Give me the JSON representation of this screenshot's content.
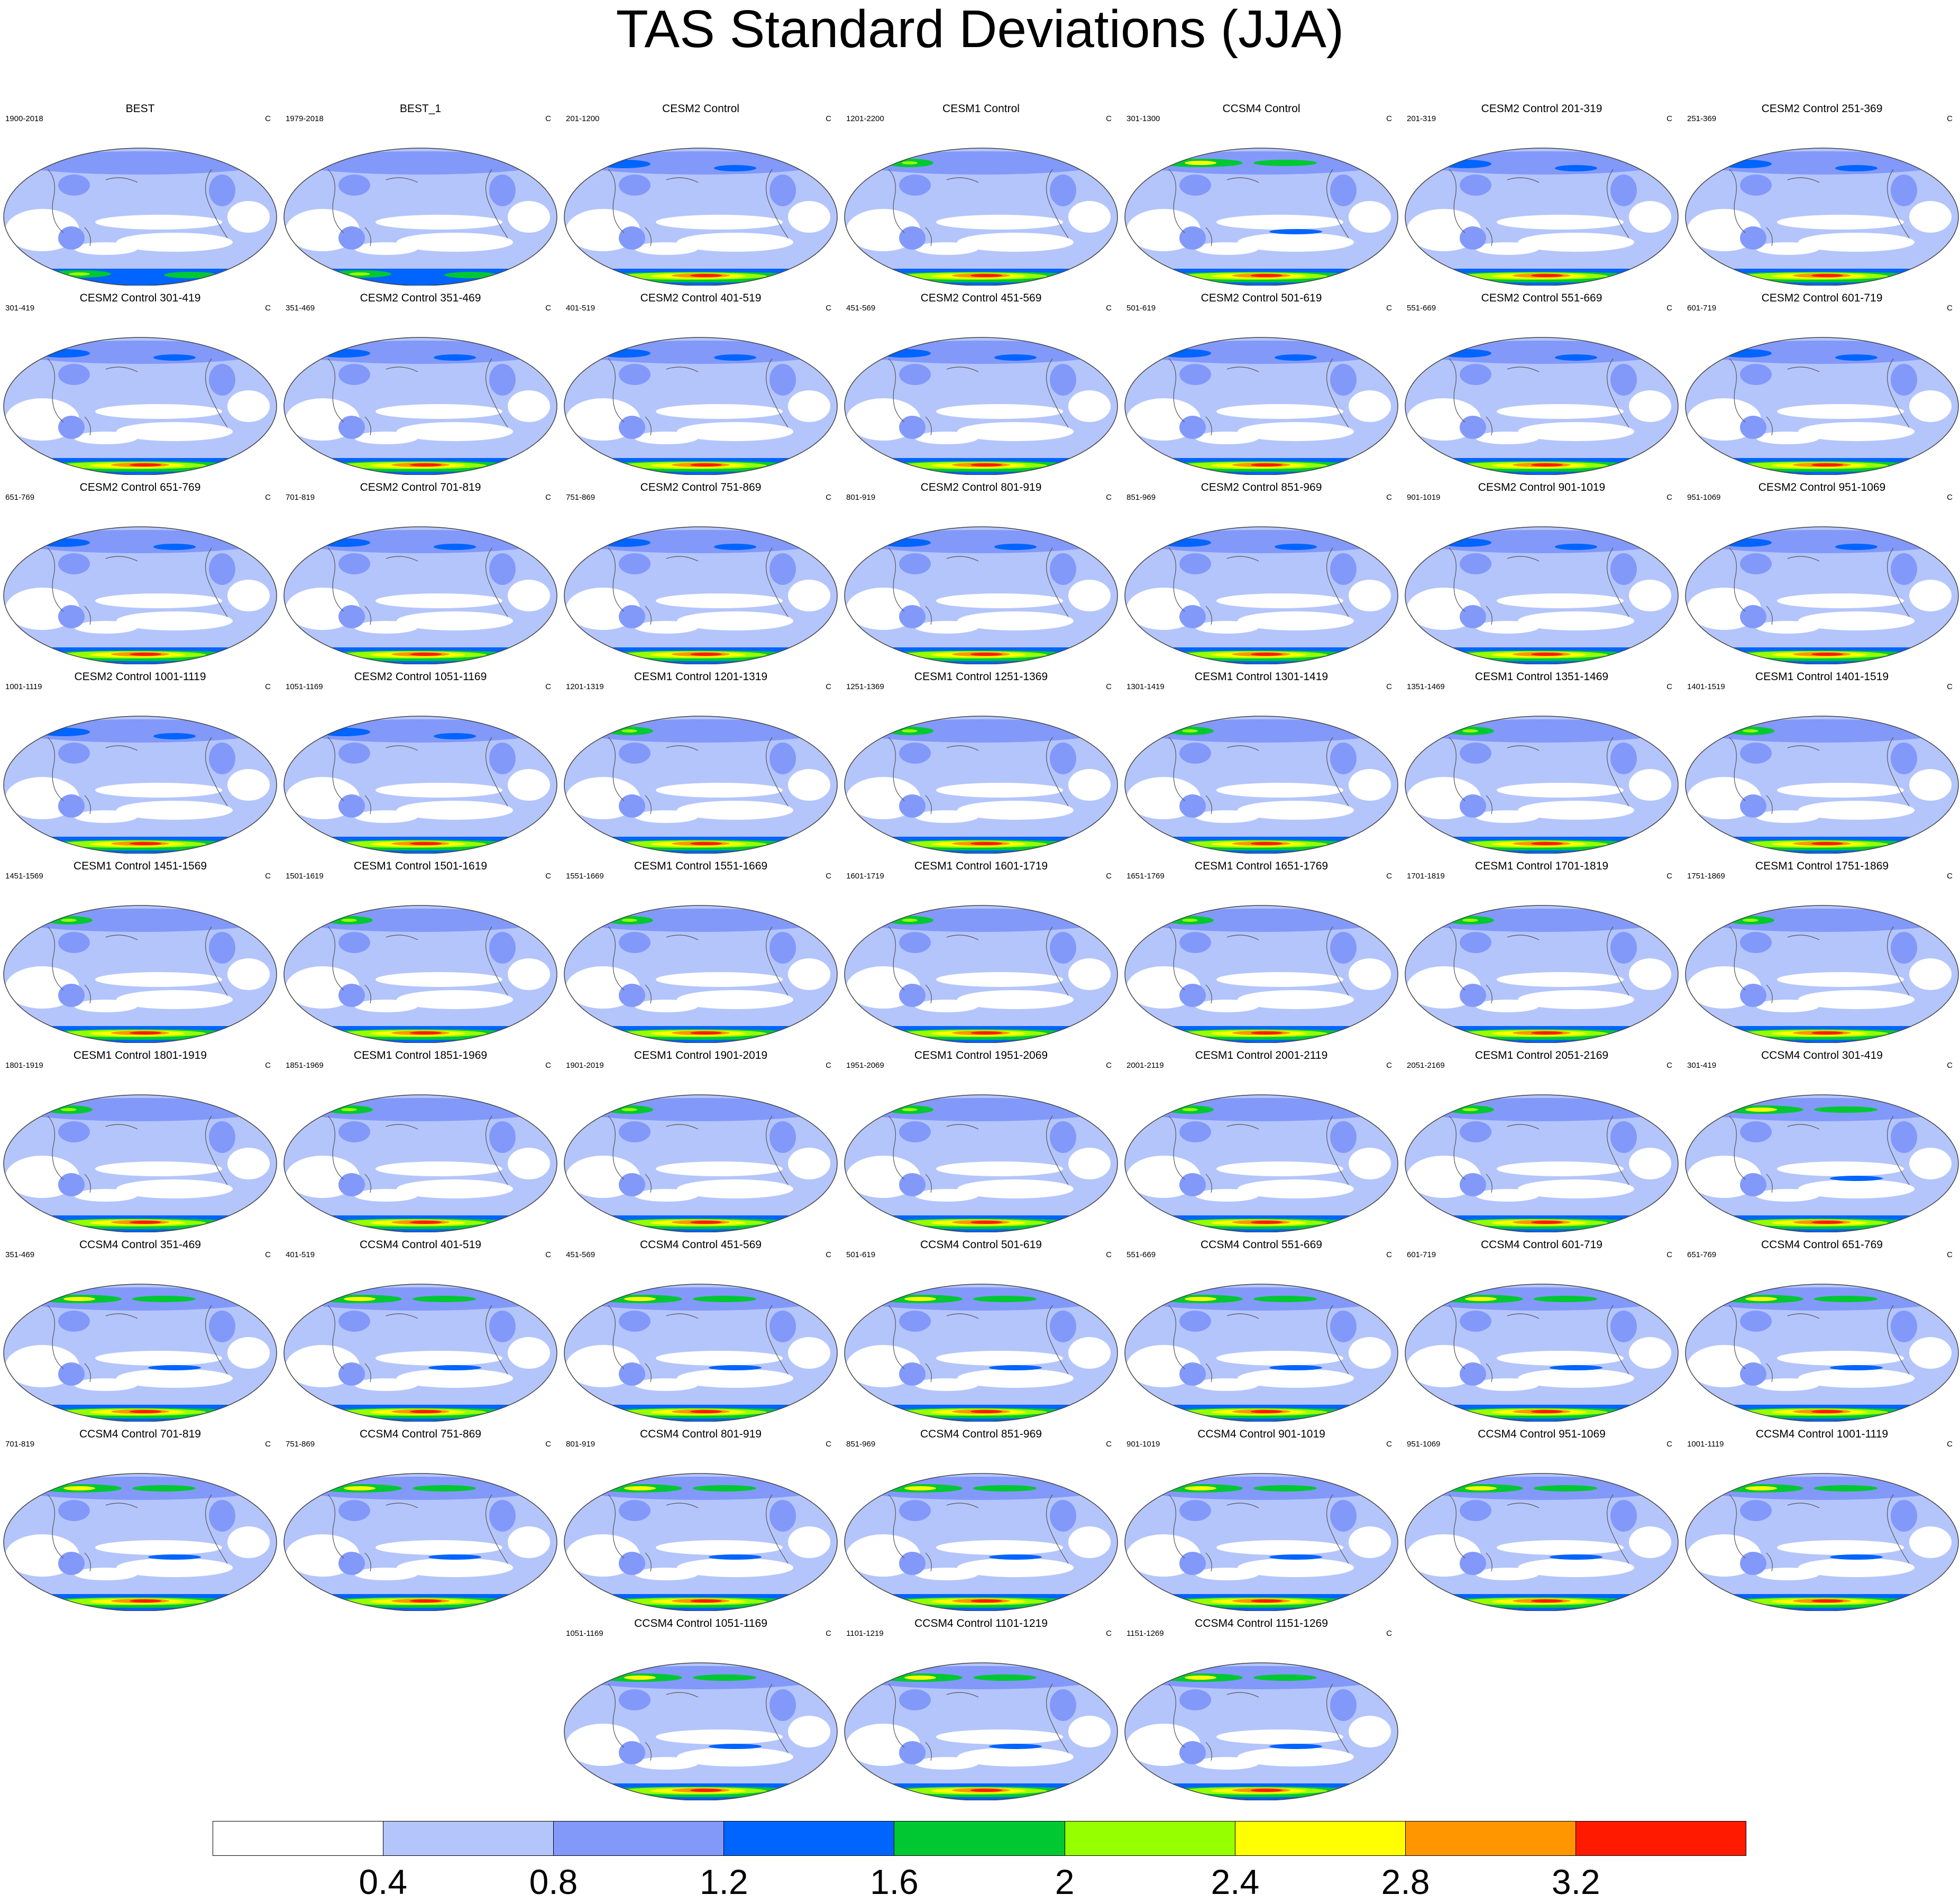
{
  "title": "TAS Standard Deviations (JJA)",
  "panel_units": "C",
  "panels": [
    {
      "title": "BEST",
      "period": "1900-2018",
      "style": "obs"
    },
    {
      "title": "BEST_1",
      "period": "1979-2018",
      "style": "obs"
    },
    {
      "title": "CESM2 Control",
      "period": "201-1200",
      "style": "cesm2"
    },
    {
      "title": "CESM1 Control",
      "period": "1201-2200",
      "style": "cesm1"
    },
    {
      "title": "CCSM4 Control",
      "period": "301-1300",
      "style": "ccsm4"
    },
    {
      "title": "CESM2 Control 201-319",
      "period": "201-319",
      "style": "cesm2"
    },
    {
      "title": "CESM2 Control 251-369",
      "period": "251-369",
      "style": "cesm2"
    },
    {
      "title": "CESM2 Control 301-419",
      "period": "301-419",
      "style": "cesm2"
    },
    {
      "title": "CESM2 Control 351-469",
      "period": "351-469",
      "style": "cesm2"
    },
    {
      "title": "CESM2 Control 401-519",
      "period": "401-519",
      "style": "cesm2"
    },
    {
      "title": "CESM2 Control 451-569",
      "period": "451-569",
      "style": "cesm2"
    },
    {
      "title": "CESM2 Control 501-619",
      "period": "501-619",
      "style": "cesm2"
    },
    {
      "title": "CESM2 Control 551-669",
      "period": "551-669",
      "style": "cesm2"
    },
    {
      "title": "CESM2 Control 601-719",
      "period": "601-719",
      "style": "cesm2"
    },
    {
      "title": "CESM2 Control 651-769",
      "period": "651-769",
      "style": "cesm2"
    },
    {
      "title": "CESM2 Control 701-819",
      "period": "701-819",
      "style": "cesm2"
    },
    {
      "title": "CESM2 Control 751-869",
      "period": "751-869",
      "style": "cesm2"
    },
    {
      "title": "CESM2 Control 801-919",
      "period": "801-919",
      "style": "cesm2"
    },
    {
      "title": "CESM2 Control 851-969",
      "period": "851-969",
      "style": "cesm2"
    },
    {
      "title": "CESM2 Control 901-1019",
      "period": "901-1019",
      "style": "cesm2"
    },
    {
      "title": "CESM2 Control 951-1069",
      "period": "951-1069",
      "style": "cesm2"
    },
    {
      "title": "CESM2 Control 1001-1119",
      "period": "1001-1119",
      "style": "cesm2"
    },
    {
      "title": "CESM2 Control 1051-1169",
      "period": "1051-1169",
      "style": "cesm2"
    },
    {
      "title": "CESM1 Control 1201-1319",
      "period": "1201-1319",
      "style": "cesm1"
    },
    {
      "title": "CESM1 Control 1251-1369",
      "period": "1251-1369",
      "style": "cesm1"
    },
    {
      "title": "CESM1 Control 1301-1419",
      "period": "1301-1419",
      "style": "cesm1"
    },
    {
      "title": "CESM1 Control 1351-1469",
      "period": "1351-1469",
      "style": "cesm1"
    },
    {
      "title": "CESM1 Control 1401-1519",
      "period": "1401-1519",
      "style": "cesm1"
    },
    {
      "title": "CESM1 Control 1451-1569",
      "period": "1451-1569",
      "style": "cesm1"
    },
    {
      "title": "CESM1 Control 1501-1619",
      "period": "1501-1619",
      "style": "cesm1"
    },
    {
      "title": "CESM1 Control 1551-1669",
      "period": "1551-1669",
      "style": "cesm1"
    },
    {
      "title": "CESM1 Control 1601-1719",
      "period": "1601-1719",
      "style": "cesm1"
    },
    {
      "title": "CESM1 Control 1651-1769",
      "period": "1651-1769",
      "style": "cesm1"
    },
    {
      "title": "CESM1 Control 1701-1819",
      "period": "1701-1819",
      "style": "cesm1"
    },
    {
      "title": "CESM1 Control 1751-1869",
      "period": "1751-1869",
      "style": "cesm1"
    },
    {
      "title": "CESM1 Control 1801-1919",
      "period": "1801-1919",
      "style": "cesm1"
    },
    {
      "title": "CESM1 Control 1851-1969",
      "period": "1851-1969",
      "style": "cesm1"
    },
    {
      "title": "CESM1 Control 1901-2019",
      "period": "1901-2019",
      "style": "cesm1"
    },
    {
      "title": "CESM1 Control 1951-2069",
      "period": "1951-2069",
      "style": "cesm1"
    },
    {
      "title": "CESM1 Control 2001-2119",
      "period": "2001-2119",
      "style": "cesm1"
    },
    {
      "title": "CESM1 Control 2051-2169",
      "period": "2051-2169",
      "style": "cesm1"
    },
    {
      "title": "CCSM4 Control 301-419",
      "period": "301-419",
      "style": "ccsm4"
    },
    {
      "title": "CCSM4 Control 351-469",
      "period": "351-469",
      "style": "ccsm4"
    },
    {
      "title": "CCSM4 Control 401-519",
      "period": "401-519",
      "style": "ccsm4"
    },
    {
      "title": "CCSM4 Control 451-569",
      "period": "451-569",
      "style": "ccsm4"
    },
    {
      "title": "CCSM4 Control 501-619",
      "period": "501-619",
      "style": "ccsm4"
    },
    {
      "title": "CCSM4 Control 551-669",
      "period": "551-669",
      "style": "ccsm4"
    },
    {
      "title": "CCSM4 Control 601-719",
      "period": "601-719",
      "style": "ccsm4"
    },
    {
      "title": "CCSM4 Control 651-769",
      "period": "651-769",
      "style": "ccsm4"
    },
    {
      "title": "CCSM4 Control 701-819",
      "period": "701-819",
      "style": "ccsm4"
    },
    {
      "title": "CCSM4 Control 751-869",
      "period": "751-869",
      "style": "ccsm4"
    },
    {
      "title": "CCSM4 Control 801-919",
      "period": "801-919",
      "style": "ccsm4"
    },
    {
      "title": "CCSM4 Control 851-969",
      "period": "851-969",
      "style": "ccsm4"
    },
    {
      "title": "CCSM4 Control 901-1019",
      "period": "901-1019",
      "style": "ccsm4"
    },
    {
      "title": "CCSM4 Control 951-1069",
      "period": "951-1069",
      "style": "ccsm4"
    },
    {
      "title": "CCSM4 Control 1001-1119",
      "period": "1001-1119",
      "style": "ccsm4"
    },
    {
      "title": "CCSM4 Control 1051-1169",
      "period": "1051-1169",
      "style": "ccsm4"
    },
    {
      "title": "CCSM4 Control 1101-1219",
      "period": "1101-1219",
      "style": "ccsm4"
    },
    {
      "title": "CCSM4 Control 1151-1269",
      "period": "1151-1269",
      "style": "ccsm4"
    }
  ],
  "colorbar": {
    "colors": [
      "#ffffff",
      "#b4c5fc",
      "#8299fa",
      "#0064ff",
      "#00c832",
      "#96ff00",
      "#ffff00",
      "#ff9600",
      "#ff1a00"
    ],
    "labels": [
      "0.4",
      "0.8",
      "1.2",
      "1.6",
      "2",
      "2.4",
      "2.8",
      "3.2"
    ]
  },
  "map_colors": {
    "ocean_low": "#ffffff",
    "level1": "#b4c5fc",
    "level2": "#8299fa",
    "level3": "#0064ff",
    "level4": "#00c832",
    "level5": "#96ff00",
    "level6": "#ffff00",
    "level7": "#ff9600",
    "level8": "#ff1a00",
    "coast": "#555555"
  }
}
